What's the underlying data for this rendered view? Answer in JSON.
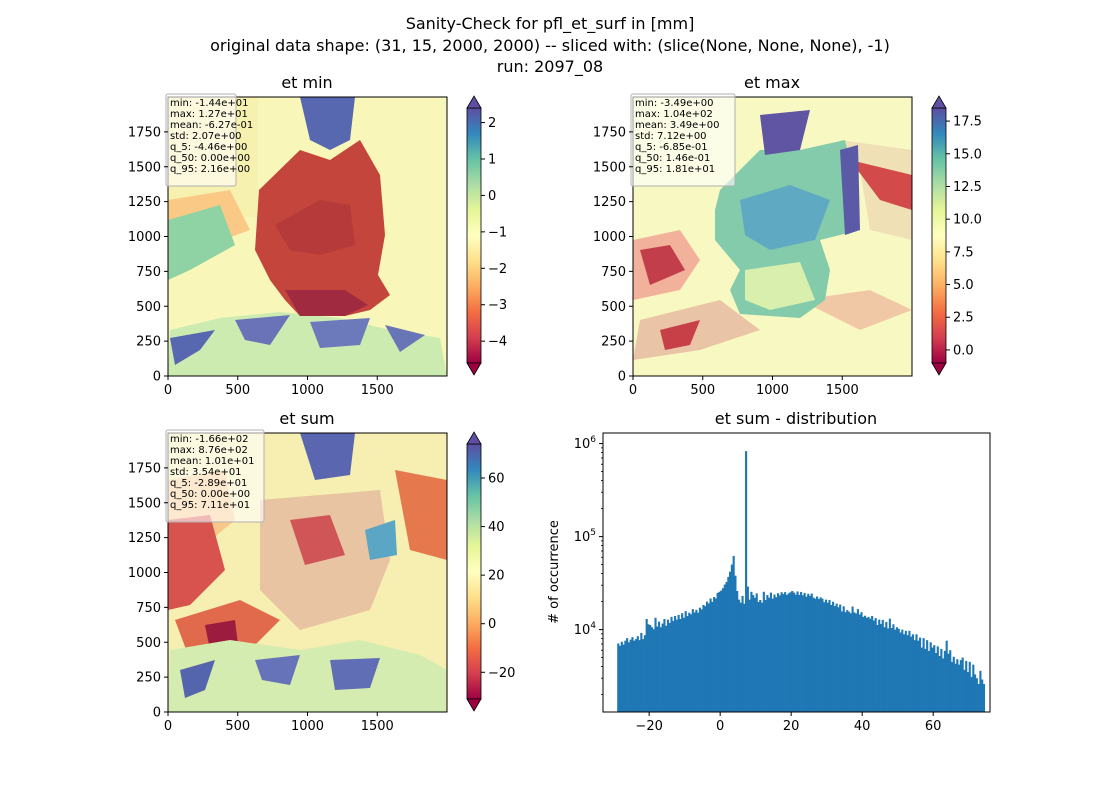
{
  "suptitle": [
    "Sanity-Check for pfl_et_surf in [mm]",
    "original data shape: (31, 15, 2000, 2000) -- sliced with: (slice(None, None, None), -1)",
    "run: 2097_08"
  ],
  "chart_data": [
    {
      "type": "heatmap",
      "title": "et min",
      "xlim": [
        0,
        2000
      ],
      "ylim": [
        0,
        2000
      ],
      "xticks": [
        0,
        500,
        1000,
        1500
      ],
      "yticks": [
        0,
        250,
        500,
        750,
        1000,
        1250,
        1500,
        1750
      ],
      "colormap": "Spectral",
      "clim": [
        -4.6,
        2.4
      ],
      "colorbar_ticks": [
        -4,
        -3,
        -2,
        -1,
        0,
        1,
        2
      ],
      "colorbar_ticklabels": [
        "−4",
        "−3",
        "−2",
        "−1",
        "0",
        "1",
        "2"
      ],
      "stats": [
        "min: -1.44e+01",
        "max: 1.27e+01",
        "mean: -6.27e-01",
        "std: 2.07e+00",
        "q_5: -4.46e+00",
        "q_50: 0.00e+00",
        "q_95: 2.16e+00"
      ]
    },
    {
      "type": "heatmap",
      "title": "et max",
      "xlim": [
        0,
        2000
      ],
      "ylim": [
        0,
        2000
      ],
      "xticks": [
        0,
        500,
        1000,
        1500
      ],
      "yticks": [
        0,
        250,
        500,
        750,
        1000,
        1250,
        1500,
        1750
      ],
      "colormap": "Spectral",
      "clim": [
        -1.0,
        18.5
      ],
      "colorbar_ticks": [
        0.0,
        2.5,
        5.0,
        7.5,
        10.0,
        12.5,
        15.0,
        17.5
      ],
      "colorbar_ticklabels": [
        "0.0",
        "2.5",
        "5.0",
        "7.5",
        "10.0",
        "12.5",
        "15.0",
        "17.5"
      ],
      "stats": [
        "min: -3.49e+00",
        "max: 1.04e+02",
        "mean: 3.49e+00",
        "std: 7.12e+00",
        "q_5: -6.85e-01",
        "q_50: 1.46e-01",
        "q_95: 1.81e+01"
      ]
    },
    {
      "type": "heatmap",
      "title": "et sum",
      "xlim": [
        0,
        2000
      ],
      "ylim": [
        0,
        2000
      ],
      "xticks": [
        0,
        500,
        1000,
        1500
      ],
      "yticks": [
        0,
        250,
        500,
        750,
        1000,
        1250,
        1500,
        1750
      ],
      "colormap": "Spectral",
      "clim": [
        -31,
        74
      ],
      "colorbar_ticks": [
        -20,
        0,
        20,
        40,
        60
      ],
      "colorbar_ticklabels": [
        "−20",
        "0",
        "20",
        "40",
        "60"
      ],
      "stats": [
        "min: -1.66e+02",
        "max: 8.76e+02",
        "mean: 1.01e+01",
        "std: 3.54e+01",
        "q_5: -2.89e+01",
        "q_50: 0.00e+00",
        "q_95: 7.11e+01"
      ]
    },
    {
      "type": "bar",
      "title": "et sum - distribution",
      "ylabel": "# of occurrence",
      "yscale": "log",
      "xlim": [
        -33,
        76
      ],
      "ylim": [
        1300,
        1300000
      ],
      "xticks": [
        -20,
        0,
        20,
        40,
        60
      ],
      "xticklabels": [
        "−20",
        "0",
        "20",
        "40",
        "60"
      ],
      "color": "#1f77b4",
      "bin_start": -29.0,
      "bin_width": 0.5,
      "counts": [
        7100,
        6700,
        7400,
        6900,
        7600,
        8100,
        7300,
        7800,
        8300,
        7600,
        7900,
        8500,
        7700,
        9200,
        7900,
        8700,
        13000,
        11400,
        11200,
        10600,
        10100,
        13400,
        10800,
        12200,
        10600,
        11600,
        13000,
        11000,
        12800,
        11800,
        13700,
        12400,
        14000,
        12800,
        14400,
        13000,
        15000,
        13400,
        15800,
        14000,
        15200,
        14600,
        16600,
        15300,
        16300,
        15200,
        17200,
        16500,
        18400,
        17900,
        20000,
        19100,
        21600,
        19900,
        22400,
        21600,
        24800,
        25500,
        26300,
        27900,
        30500,
        32500,
        36900,
        42000,
        50000,
        62000,
        38000,
        26000,
        21000,
        19500,
        23000,
        19000,
        830000,
        29000,
        21000,
        25500,
        23500,
        22000,
        24500,
        19800,
        20800,
        19500,
        25500,
        20800,
        23500,
        22000,
        25000,
        21500,
        23800,
        22300,
        24600,
        23300,
        25200,
        24100,
        25300,
        23600,
        24500,
        25200,
        26000,
        25000,
        23800,
        25700,
        23600,
        25400,
        23400,
        24800,
        22600,
        24300,
        23100,
        24400,
        22100,
        21500,
        22700,
        21300,
        22200,
        21500,
        19700,
        21000,
        19500,
        20800,
        18400,
        19900,
        17900,
        19000,
        17400,
        18600,
        15700,
        17800,
        15400,
        16200,
        15600,
        15000,
        17700,
        15300,
        14900,
        16600,
        14500,
        15400,
        13700,
        14100,
        13400,
        13700,
        13100,
        14000,
        12500,
        13300,
        11200,
        12800,
        11500,
        12700,
        10600,
        12100,
        10300,
        13100,
        10400,
        11400,
        10000,
        10600,
        10200,
        9300,
        10000,
        8900,
        9700,
        8700,
        9700,
        8400,
        8900,
        7700,
        8900,
        7600,
        8200,
        6400,
        8100,
        6200,
        7700,
        5900,
        7300,
        6400,
        6800,
        5600,
        6600,
        5200,
        6200,
        4900,
        5900,
        7600,
        5500,
        6000,
        4500,
        5100,
        4300,
        4800,
        4200,
        4700,
        5000,
        3700,
        4600,
        3500,
        4500,
        3100,
        4200,
        3300,
        3000,
        2600,
        3600,
        2900,
        2600
      ]
    }
  ]
}
